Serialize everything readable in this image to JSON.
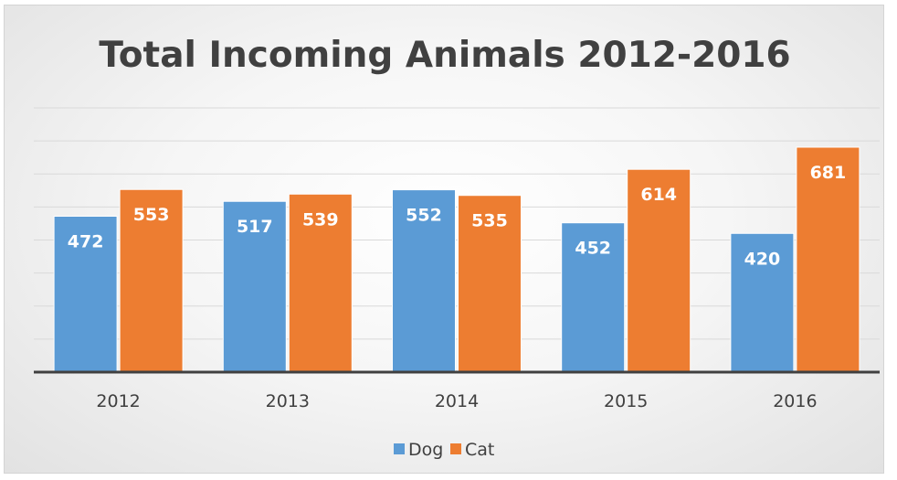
{
  "chart_data": {
    "type": "bar",
    "title": "Total Incoming Animals 2012-2016",
    "categories": [
      "2012",
      "2013",
      "2014",
      "2015",
      "2016"
    ],
    "series": [
      {
        "name": "Dog",
        "values": [
          472,
          517,
          552,
          452,
          420
        ],
        "color": "#5b9bd5"
      },
      {
        "name": "Cat",
        "values": [
          553,
          539,
          535,
          614,
          681
        ],
        "color": "#ed7d31"
      }
    ],
    "ylim": [
      0,
      800
    ],
    "gridlines": true,
    "legend_position": "bottom",
    "data_labels": true
  }
}
